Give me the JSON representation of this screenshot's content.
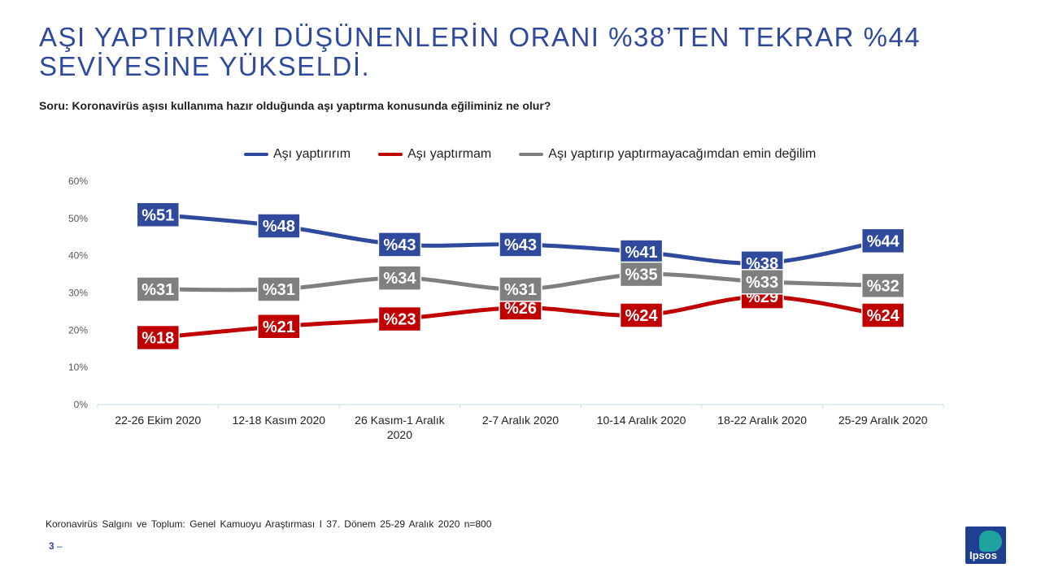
{
  "slide": {
    "title": "AŞI YAPTIRMAYI DÜŞÜNENLERİN ORANI %38’TEN TEKRAR %44 SEVİYESİNE YÜKSELDİ.",
    "question": "Soru: Koronavirüs aşısı kullanıma hazır olduğunda aşı yaptırma konusunda eğiliminiz ne olur?",
    "footnote": "Koronavirüs Salgını ve Toplum: Genel Kamuoyu Araştırması I 37. Dönem 25-29 Aralık 2020 n=800",
    "page_number": "3",
    "page_dash": "–",
    "logo_text": "Ipsos"
  },
  "colors": {
    "title": "#2f4a9d",
    "blue_series": "#2f4a9d",
    "red_series": "#c00000",
    "gray_series": "#7f7f7f",
    "logo_bg": "#1f3f92",
    "logo_accent": "#1fa3a0"
  },
  "chart_data": {
    "type": "line",
    "categories": [
      "22-26 Ekim 2020",
      "12-18 Kasım 2020",
      "26 Kasım-1 Aralık 2020",
      "2-7 Aralık 2020",
      "10-14 Aralık 2020",
      "18-22 Aralık 2020",
      "25-29 Aralık 2020"
    ],
    "category_lines": [
      [
        "22-26 Ekim 2020"
      ],
      [
        "12-18 Kasım 2020"
      ],
      [
        "26 Kasım-1 Aralık",
        "2020"
      ],
      [
        "2-7 Aralık 2020"
      ],
      [
        "10-14 Aralık 2020"
      ],
      [
        "18-22 Aralık 2020"
      ],
      [
        "25-29 Aralık 2020"
      ]
    ],
    "y_ticks": [
      "0%",
      "10%",
      "20%",
      "30%",
      "40%",
      "50%",
      "60%"
    ],
    "ylim": [
      0,
      60
    ],
    "grid": false,
    "legend_position": "top",
    "series": [
      {
        "name": "Aşı yaptırırım",
        "color": "#2f4a9d",
        "values": [
          51,
          48,
          43,
          43,
          41,
          38,
          44
        ],
        "labels": [
          "%51",
          "%48",
          "%43",
          "%43",
          "%41",
          "%38",
          "%44"
        ]
      },
      {
        "name": "Aşı yaptırmam",
        "color": "#c00000",
        "values": [
          18,
          21,
          23,
          26,
          24,
          29,
          24
        ],
        "labels": [
          "%18",
          "%21",
          "%23",
          "%26",
          "%24",
          "%29",
          "%24"
        ]
      },
      {
        "name": "Aşı yaptırıp yaptırmayacağımdan emin değilim",
        "color": "#7f7f7f",
        "values": [
          31,
          31,
          34,
          31,
          35,
          33,
          32
        ],
        "labels": [
          "%31",
          "%31",
          "%34",
          "%31",
          "%35",
          "%33",
          "%32"
        ]
      }
    ]
  }
}
